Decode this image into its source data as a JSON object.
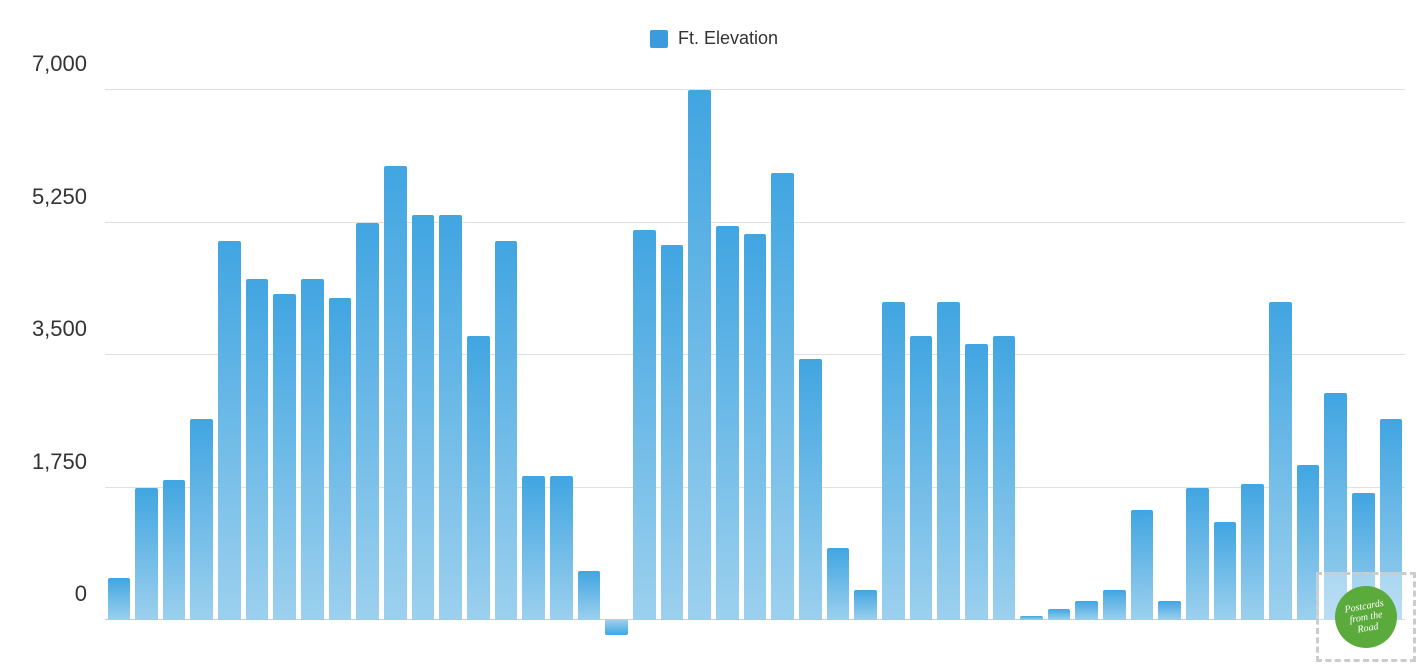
{
  "chart": {
    "type": "bar",
    "legend": {
      "label": "Ft. Elevation",
      "swatch_color": "#3a9cdc"
    },
    "y_axis": {
      "min": 0,
      "max": 7000,
      "tick_step": 1750,
      "ticks": [
        0,
        1750,
        3500,
        5250,
        7000
      ],
      "tick_labels": [
        "0",
        "1,750",
        "3,500",
        "5,250",
        "7,000"
      ],
      "label_fontsize": 22,
      "label_color": "#333333"
    },
    "grid_color": "#e0e0e0",
    "baseline_color": "#cccccc",
    "background_color": "#ffffff",
    "bar_gradient_top": "#41a5e1",
    "bar_gradient_bottom": "#9cd0ee",
    "values": [
      550,
      1750,
      1850,
      2650,
      5000,
      4500,
      4300,
      4500,
      4250,
      5250,
      6000,
      5350,
      5350,
      3750,
      5000,
      1900,
      1900,
      650,
      -200,
      5150,
      4950,
      7000,
      5200,
      5100,
      5900,
      3450,
      950,
      400,
      4200,
      3750,
      4200,
      3650,
      3750,
      50,
      150,
      250,
      400,
      1450,
      250,
      1750,
      1300,
      1800,
      4200,
      2050,
      3000,
      1680,
      2650
    ]
  },
  "watermark": {
    "line1": "Postcards",
    "line2": "from the",
    "line3": "Road"
  }
}
